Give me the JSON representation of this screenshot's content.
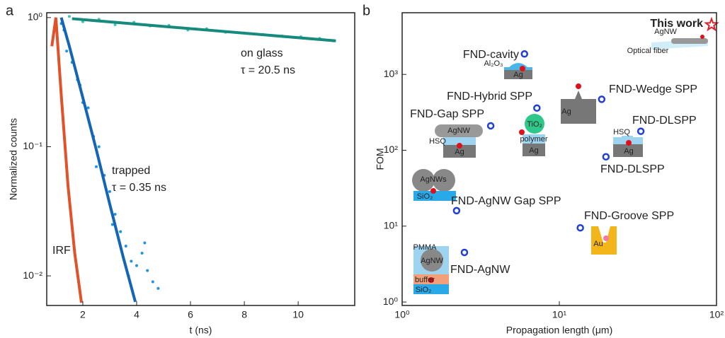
{
  "chart_data": [
    {
      "type": "scatter",
      "panel_label": "a",
      "xlabel": "t (ns)",
      "ylabel": "Normalized counts",
      "xlim": [
        0.66,
        12.1
      ],
      "ylim": [
        0.0059,
        1.09
      ],
      "ylog": true,
      "xticks": [
        2,
        4,
        6,
        8,
        10
      ],
      "yticks": [
        {
          "value": 1,
          "label": "10⁰"
        },
        {
          "value": 0.1,
          "label": "10⁻¹"
        },
        {
          "value": 0.01,
          "label": "10⁻²"
        }
      ],
      "series": [
        {
          "mode": "markers",
          "color": "#3cc7b7",
          "x": [
            1.0,
            1.5,
            2.0,
            2.6,
            3.2,
            3.9,
            4.5,
            5.2,
            5.9,
            6.6,
            7.3,
            8.0,
            8.7,
            9.4,
            10.1,
            10.8,
            11.3
          ],
          "values": [
            0.95,
            1.02,
            0.93,
            0.97,
            0.88,
            0.92,
            0.86,
            0.87,
            0.8,
            0.82,
            0.77,
            0.76,
            0.74,
            0.72,
            0.71,
            0.69,
            0.66
          ]
        },
        {
          "mode": "line",
          "color": "#178a7e",
          "x": [
            1.6,
            11.4
          ],
          "values": [
            0.98,
            0.66
          ]
        },
        {
          "mode": "markers",
          "color": "#2391dc",
          "x": [
            1.2,
            1.4,
            1.6,
            1.8,
            2.0,
            2.2,
            2.4,
            2.6,
            2.8,
            3.0,
            3.2,
            3.4,
            3.6,
            3.8,
            4.0,
            4.2,
            4.4,
            4.6,
            4.8,
            1.3,
            1.9,
            2.5,
            3.1,
            3.7,
            4.3
          ],
          "values": [
            0.9,
            0.55,
            0.45,
            0.33,
            0.22,
            0.2,
            0.12,
            0.1,
            0.06,
            0.045,
            0.03,
            0.022,
            0.017,
            0.013,
            0.012,
            0.015,
            0.011,
            0.009,
            0.008,
            0.8,
            0.3,
            0.07,
            0.025,
            0.01,
            0.018
          ]
        },
        {
          "mode": "line",
          "color": "#1466b4",
          "x": [
            1.2,
            1.5,
            2.0,
            2.5,
            3.0,
            3.5,
            3.95
          ],
          "values": [
            1,
            0.6,
            0.24,
            0.095,
            0.036,
            0.014,
            0.0063
          ]
        },
        {
          "mode": "line",
          "color": "#e0522a",
          "x": [
            0.85,
            1.0,
            1.2,
            1.45,
            1.7,
            1.95
          ],
          "values": [
            0.6,
            1,
            0.25,
            0.05,
            0.015,
            0.0062
          ]
        }
      ],
      "annotations": [
        "on glass",
        "τ = 20.5 ns",
        "trapped",
        "τ = 0.35 ns",
        "IRF"
      ]
    },
    {
      "type": "scatter",
      "panel_label": "b",
      "xlabel": "Propagation length (μm)",
      "ylabel": "FOM",
      "xlim": [
        1,
        100
      ],
      "ylim": [
        0.9,
        6500
      ],
      "xlog": true,
      "ylog": true,
      "xticks": [
        {
          "value": 1,
          "label": "10⁰"
        },
        {
          "value": 10,
          "label": "10¹"
        },
        {
          "value": 100,
          "label": "10²"
        }
      ],
      "yticks": [
        {
          "value": 1,
          "label": "10⁰"
        },
        {
          "value": 10,
          "label": "10¹"
        },
        {
          "value": 100,
          "label": "10²"
        },
        {
          "value": 1000,
          "label": "10³"
        }
      ],
      "series": [
        {
          "mode": "markers",
          "color": "#1f3fd6",
          "x": [
            6.0,
            7.2,
            18.6,
            3.66,
            33,
            19.8,
            2.22,
            13.6,
            2.49
          ],
          "values": [
            1860,
            360,
            470,
            210,
            178,
            82,
            16,
            9.5,
            4.5
          ],
          "point_labels": [
            "FND-cavity",
            "FND-Hybrid SPP",
            "FND-Wedge SPP",
            "FND-Gap SPP",
            "FND-DLSPP",
            "FND-DLSPP",
            "FND-AgNW Gap SPP",
            "FND-Groove SPP",
            "FND-AgNW"
          ]
        },
        {
          "mode": "star",
          "color": "#e0202a",
          "x": [
            93
          ],
          "values": [
            4500
          ],
          "point_labels": [
            "This work"
          ]
        }
      ],
      "inset_labels": [
        "AgNW",
        "Optical fiber",
        "Al₂O₃",
        "Ag",
        "Ag",
        "AgNW",
        "HSQ",
        "Ag",
        "TiO₂",
        "polymer",
        "Ag",
        "HSQ",
        "Ag",
        "AgNWs",
        "SiO₂",
        "Au",
        "PMMA",
        "AgNW",
        "buffer",
        "SiO₂"
      ]
    }
  ]
}
